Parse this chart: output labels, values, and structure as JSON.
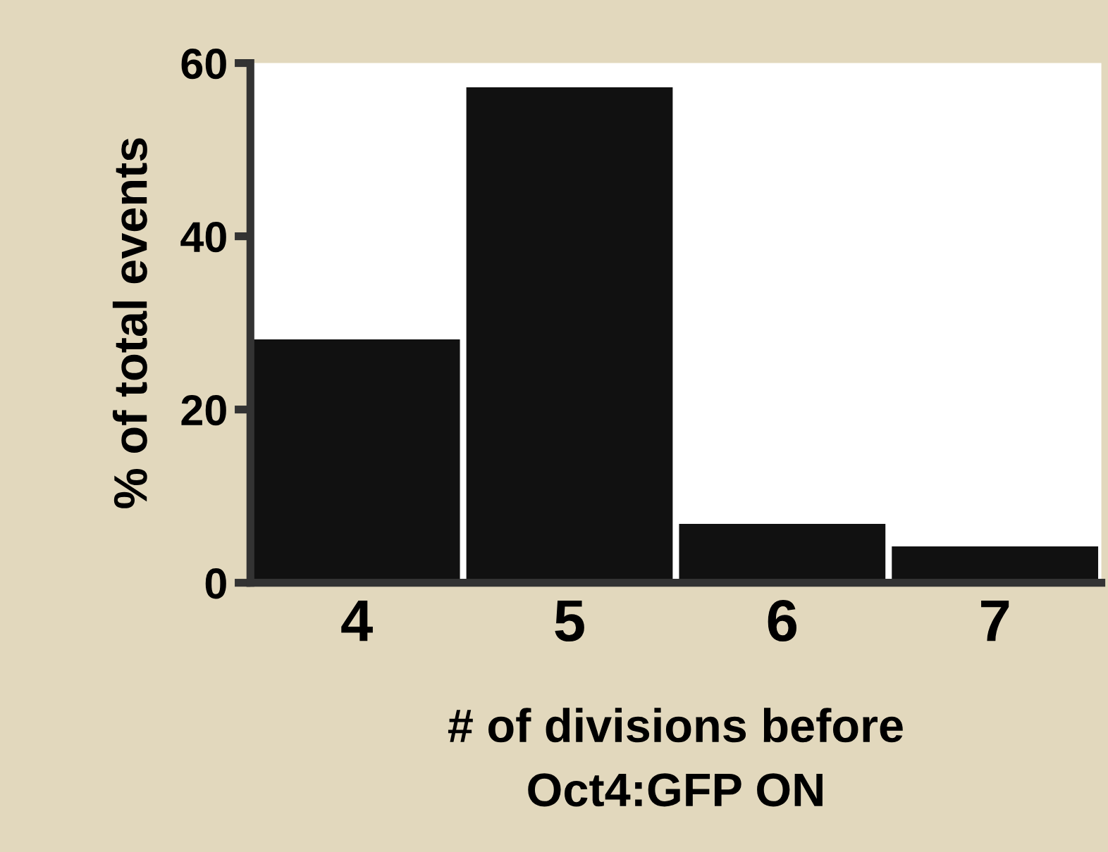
{
  "chart_data": {
    "type": "bar",
    "xlabel": "# of divisions before\nOct4:GFP ON",
    "ylabel": "% of total events",
    "categories": [
      "4",
      "5",
      "6",
      "7"
    ],
    "values": [
      28.1,
      57.2,
      6.8,
      4.2
    ],
    "color": "#111111",
    "ylim": [
      0,
      60
    ],
    "yticks": [
      0,
      20,
      40,
      60
    ],
    "grid": false,
    "legend": false
  }
}
